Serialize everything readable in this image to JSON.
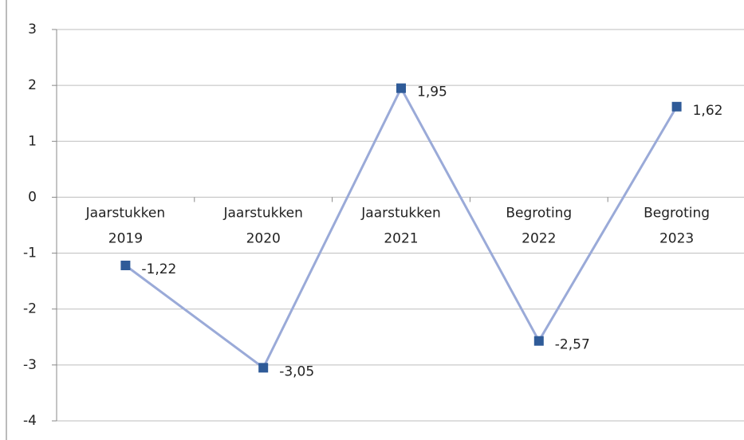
{
  "chart_data": {
    "type": "line",
    "categories": [
      "Jaarstukken 2019",
      "Jaarstukken 2020",
      "Jaarstukken 2021",
      "Begroting 2022",
      "Begroting 2023"
    ],
    "values": [
      -1.22,
      -3.05,
      1.95,
      -2.57,
      1.62
    ],
    "value_labels": [
      "-1,22",
      "-3,05",
      "1,95",
      "-2,57",
      "1,62"
    ],
    "color": "#9aaad8",
    "marker_color": "#2f5b98",
    "ylim": [
      -4,
      3
    ],
    "yticks": [
      3,
      2,
      1,
      0,
      -1,
      -2,
      -3,
      -4
    ],
    "grid": true
  }
}
